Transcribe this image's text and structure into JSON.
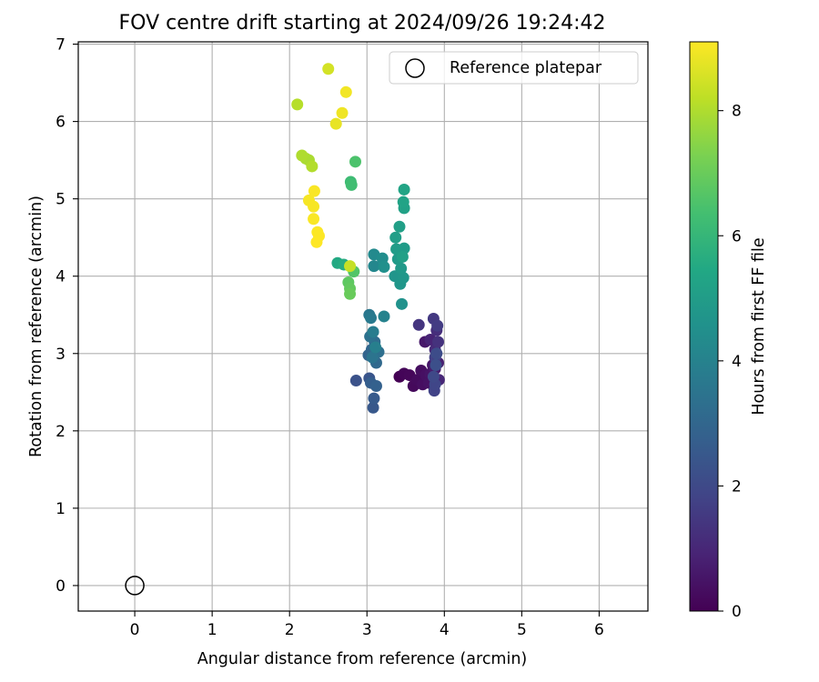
{
  "chart_data": {
    "type": "scatter",
    "title": "FOV centre drift starting at 2024/09/26 19:24:42",
    "xlabel": "Angular distance from reference (arcmin)",
    "ylabel": "Rotation from reference (arcmin)",
    "xlim": [
      -0.73,
      6.63
    ],
    "ylim": [
      -0.33,
      7.03
    ],
    "xticks": [
      0,
      1,
      2,
      3,
      4,
      5,
      6
    ],
    "yticks": [
      0,
      1,
      2,
      3,
      4,
      5,
      6,
      7
    ],
    "grid": true,
    "legend": {
      "position": "top-right",
      "entries": [
        "Reference platepar"
      ]
    },
    "reference_point": {
      "x": 0,
      "y": 0,
      "label": "Reference platepar"
    },
    "colorbar": {
      "label": "Hours from first FF file",
      "colormap": "viridis",
      "range": [
        0,
        9.1
      ],
      "ticks": [
        0,
        2,
        4,
        6,
        8
      ]
    },
    "points": [
      {
        "x": 3.42,
        "y": 2.7,
        "h": 0.0
      },
      {
        "x": 3.48,
        "y": 2.74,
        "h": 0.1
      },
      {
        "x": 3.55,
        "y": 2.72,
        "h": 0.15
      },
      {
        "x": 3.6,
        "y": 2.58,
        "h": 0.2
      },
      {
        "x": 3.65,
        "y": 2.66,
        "h": 0.25
      },
      {
        "x": 3.7,
        "y": 2.78,
        "h": 0.3
      },
      {
        "x": 3.72,
        "y": 2.6,
        "h": 0.35
      },
      {
        "x": 3.76,
        "y": 2.72,
        "h": 0.4
      },
      {
        "x": 3.8,
        "y": 2.62,
        "h": 0.45
      },
      {
        "x": 3.82,
        "y": 2.74,
        "h": 0.5
      },
      {
        "x": 3.85,
        "y": 2.85,
        "h": 0.55
      },
      {
        "x": 3.75,
        "y": 3.15,
        "h": 0.6
      },
      {
        "x": 3.88,
        "y": 2.8,
        "h": 0.7
      },
      {
        "x": 3.92,
        "y": 2.88,
        "h": 0.8
      },
      {
        "x": 3.82,
        "y": 3.18,
        "h": 0.9
      },
      {
        "x": 3.93,
        "y": 2.66,
        "h": 1.0
      },
      {
        "x": 3.88,
        "y": 3.05,
        "h": 1.1
      },
      {
        "x": 3.9,
        "y": 3.3,
        "h": 1.2
      },
      {
        "x": 3.92,
        "y": 3.15,
        "h": 1.3
      },
      {
        "x": 3.67,
        "y": 3.37,
        "h": 1.4
      },
      {
        "x": 3.86,
        "y": 3.45,
        "h": 1.5
      },
      {
        "x": 3.91,
        "y": 3.36,
        "h": 1.6
      },
      {
        "x": 3.88,
        "y": 2.95,
        "h": 1.7
      },
      {
        "x": 3.87,
        "y": 2.52,
        "h": 1.8
      },
      {
        "x": 3.88,
        "y": 2.6,
        "h": 1.9
      },
      {
        "x": 3.86,
        "y": 2.7,
        "h": 2.0
      },
      {
        "x": 3.9,
        "y": 3.0,
        "h": 2.1
      },
      {
        "x": 3.89,
        "y": 2.85,
        "h": 2.2
      },
      {
        "x": 2.86,
        "y": 2.65,
        "h": 2.3
      },
      {
        "x": 3.03,
        "y": 2.68,
        "h": 2.4
      },
      {
        "x": 3.08,
        "y": 2.3,
        "h": 2.5
      },
      {
        "x": 3.09,
        "y": 2.42,
        "h": 2.6
      },
      {
        "x": 3.05,
        "y": 2.62,
        "h": 2.7
      },
      {
        "x": 3.12,
        "y": 2.58,
        "h": 2.8
      },
      {
        "x": 3.02,
        "y": 2.98,
        "h": 2.9
      },
      {
        "x": 3.06,
        "y": 3.05,
        "h": 3.0
      },
      {
        "x": 3.12,
        "y": 2.88,
        "h": 3.1
      },
      {
        "x": 3.1,
        "y": 3.15,
        "h": 3.2
      },
      {
        "x": 3.15,
        "y": 3.02,
        "h": 3.3
      },
      {
        "x": 3.04,
        "y": 3.22,
        "h": 3.4
      },
      {
        "x": 3.07,
        "y": 2.95,
        "h": 3.5
      },
      {
        "x": 3.03,
        "y": 3.5,
        "h": 3.6
      },
      {
        "x": 3.05,
        "y": 3.46,
        "h": 3.7
      },
      {
        "x": 3.08,
        "y": 3.28,
        "h": 3.8
      },
      {
        "x": 3.11,
        "y": 3.08,
        "h": 3.9
      },
      {
        "x": 3.22,
        "y": 3.48,
        "h": 4.0
      },
      {
        "x": 3.09,
        "y": 4.13,
        "h": 4.2
      },
      {
        "x": 3.09,
        "y": 4.28,
        "h": 4.3
      },
      {
        "x": 3.2,
        "y": 4.23,
        "h": 4.4
      },
      {
        "x": 3.22,
        "y": 4.12,
        "h": 4.5
      },
      {
        "x": 3.45,
        "y": 3.64,
        "h": 4.6
      },
      {
        "x": 3.36,
        "y": 4.0,
        "h": 4.7
      },
      {
        "x": 3.43,
        "y": 3.9,
        "h": 4.75
      },
      {
        "x": 3.47,
        "y": 3.98,
        "h": 4.8
      },
      {
        "x": 3.44,
        "y": 4.1,
        "h": 4.85
      },
      {
        "x": 3.4,
        "y": 4.22,
        "h": 4.9
      },
      {
        "x": 3.48,
        "y": 4.36,
        "h": 4.95
      },
      {
        "x": 3.38,
        "y": 4.35,
        "h": 5.0
      },
      {
        "x": 3.37,
        "y": 4.5,
        "h": 5.05
      },
      {
        "x": 3.42,
        "y": 4.64,
        "h": 5.1
      },
      {
        "x": 3.46,
        "y": 4.25,
        "h": 5.15
      },
      {
        "x": 3.48,
        "y": 4.88,
        "h": 5.2
      },
      {
        "x": 3.47,
        "y": 4.96,
        "h": 5.25
      },
      {
        "x": 3.48,
        "y": 5.12,
        "h": 5.3
      },
      {
        "x": 2.62,
        "y": 4.17,
        "h": 5.5
      },
      {
        "x": 2.7,
        "y": 4.15,
        "h": 5.6
      },
      {
        "x": 2.79,
        "y": 5.22,
        "h": 6.2
      },
      {
        "x": 2.8,
        "y": 5.18,
        "h": 6.3
      },
      {
        "x": 2.85,
        "y": 5.48,
        "h": 6.5
      },
      {
        "x": 2.83,
        "y": 4.06,
        "h": 6.6
      },
      {
        "x": 2.76,
        "y": 3.92,
        "h": 6.8
      },
      {
        "x": 2.78,
        "y": 3.84,
        "h": 6.9
      },
      {
        "x": 2.78,
        "y": 3.77,
        "h": 7.0
      },
      {
        "x": 2.21,
        "y": 5.52,
        "h": 7.9
      },
      {
        "x": 2.25,
        "y": 5.5,
        "h": 7.95
      },
      {
        "x": 2.16,
        "y": 5.56,
        "h": 8.0
      },
      {
        "x": 2.29,
        "y": 5.42,
        "h": 8.05
      },
      {
        "x": 2.1,
        "y": 6.22,
        "h": 8.1
      },
      {
        "x": 2.78,
        "y": 4.13,
        "h": 8.3
      },
      {
        "x": 2.5,
        "y": 6.68,
        "h": 8.5
      },
      {
        "x": 2.6,
        "y": 5.97,
        "h": 8.8
      },
      {
        "x": 2.68,
        "y": 6.11,
        "h": 8.9
      },
      {
        "x": 2.73,
        "y": 6.38,
        "h": 8.95
      },
      {
        "x": 2.25,
        "y": 4.98,
        "h": 9.0
      },
      {
        "x": 2.31,
        "y": 4.9,
        "h": 9.02
      },
      {
        "x": 2.32,
        "y": 5.1,
        "h": 9.04
      },
      {
        "x": 2.31,
        "y": 4.74,
        "h": 9.05
      },
      {
        "x": 2.36,
        "y": 4.57,
        "h": 9.07
      },
      {
        "x": 2.38,
        "y": 4.52,
        "h": 9.08
      },
      {
        "x": 2.35,
        "y": 4.44,
        "h": 9.1
      }
    ]
  }
}
